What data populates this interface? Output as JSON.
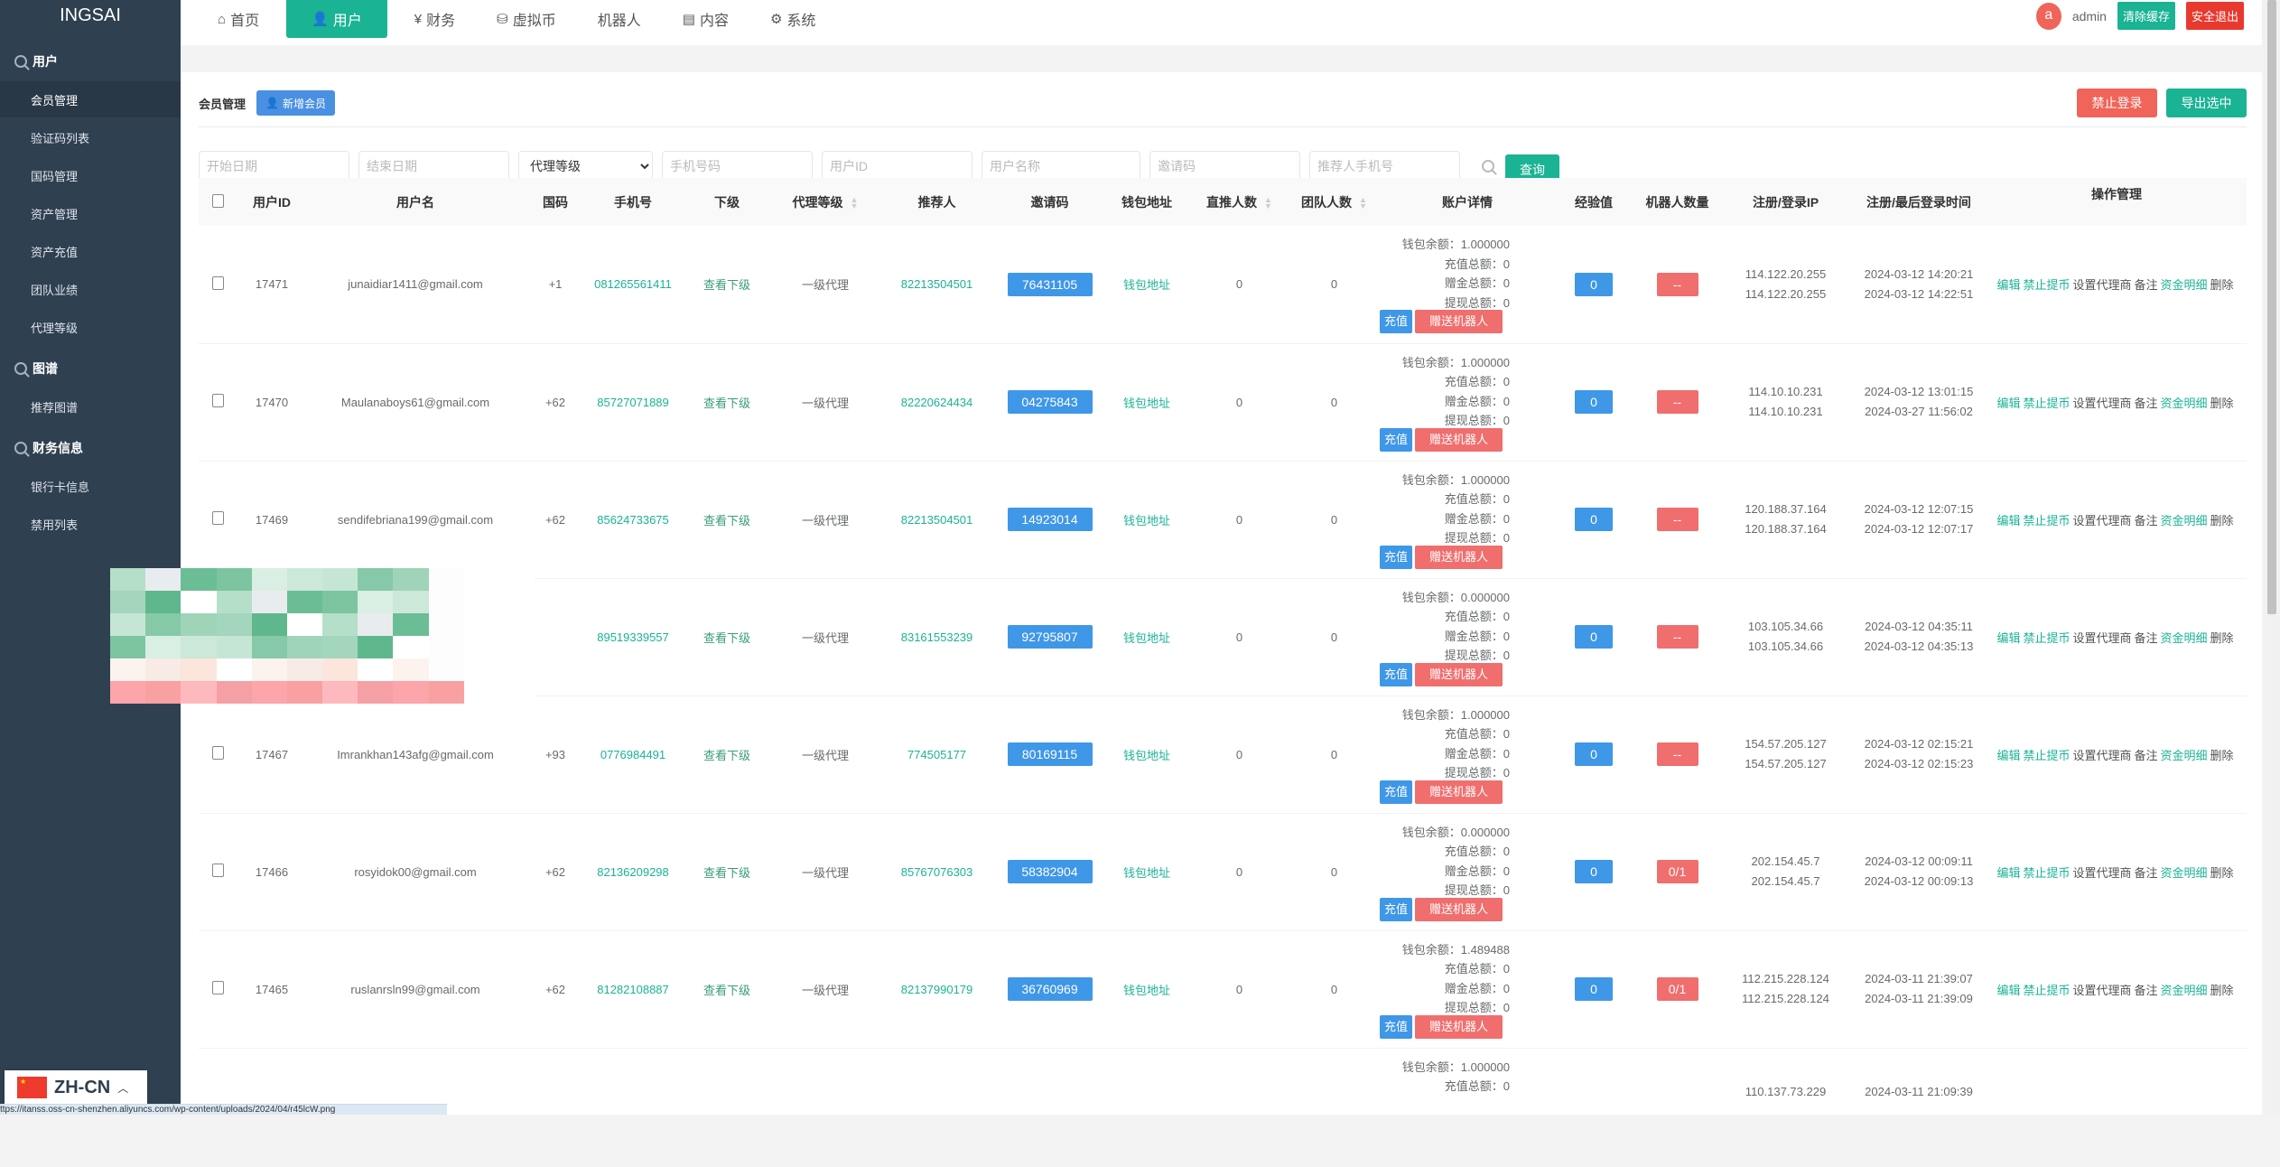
{
  "sidebar": {
    "logo": "INGSAI",
    "sections": [
      {
        "label": "用户",
        "items": [
          "会员管理",
          "验证码列表",
          "国码管理",
          "资产管理",
          "资产充值",
          "团队业绩",
          "代理等级"
        ]
      },
      {
        "label": "图谱",
        "items": [
          "推荐图谱"
        ]
      },
      {
        "label": "财务信息",
        "items": [
          "银行卡信息",
          "禁用列表"
        ]
      }
    ],
    "active_item": "会员管理"
  },
  "topnav": {
    "items": [
      {
        "label": "首页",
        "icon": "home-icon",
        "glyph": "⌂"
      },
      {
        "label": "用户",
        "icon": "user-icon",
        "glyph": "👤",
        "active": true
      },
      {
        "label": "财务",
        "icon": "finance-icon",
        "glyph": "¥"
      },
      {
        "label": "虚拟币",
        "icon": "database-icon",
        "glyph": "⛁"
      },
      {
        "label": "机器人",
        "icon": "",
        "glyph": ""
      },
      {
        "label": "内容",
        "icon": "document-icon",
        "glyph": "▤"
      },
      {
        "label": "系统",
        "icon": "gear-icon",
        "glyph": "⚙"
      }
    ],
    "avatar_letter": "a",
    "username": "admin",
    "clear_cache": "清除缓存",
    "logout": "安全退出"
  },
  "colors": {
    "sidebar": "#2f4050",
    "primary": "#1ab394",
    "blue": "#3f97e8",
    "red": "#f06e6e",
    "logout_red": "#e8392f"
  },
  "page": {
    "title": "会员管理",
    "add_member": "新增会员",
    "ban_login": "禁止登录",
    "export_selected": "导出选中"
  },
  "filters": {
    "start_date": "开始日期",
    "end_date": "结束日期",
    "agent_level": "代理等级",
    "phone": "手机号码",
    "user_id": "用户ID",
    "username": "用户名称",
    "invite_code": "邀请码",
    "referrer_phone": "推荐人手机号",
    "query": "查询"
  },
  "table": {
    "headers": [
      "用户ID",
      "用户名",
      "国码",
      "手机号",
      "下级",
      "代理等级",
      "推荐人",
      "邀请码",
      "钱包地址",
      "直推人数",
      "团队人数",
      "账户详情",
      "经验值",
      "机器人数量",
      "注册/登录IP",
      "注册/最后登录时间",
      "操作管理"
    ],
    "labels": {
      "view_sub": "查看下级",
      "wallet": "钱包地址",
      "balance": "钱包余额：",
      "recharge_total": "充值总额：",
      "bonus_total": "赠金总额：",
      "withdraw_total": "提现总额：",
      "recharge_btn": "充值",
      "gift_robot_btn": "赠送机器人",
      "ops": [
        "编辑",
        "禁止提币",
        "设置代理商",
        "备注",
        "资金明细",
        "删除"
      ]
    },
    "rows": [
      {
        "id": "17471",
        "name": "junaidiar1411@gmail.com",
        "cc": "+1",
        "phone": "081265561411",
        "level": "一级代理",
        "referrer": "82213504501",
        "invite": "76431105",
        "direct": "0",
        "team": "0",
        "balance": "1.000000",
        "recharge": "0",
        "bonus": "0",
        "withdraw": "0",
        "exp": "0",
        "robots": "--",
        "ip_reg": "114.122.20.255",
        "ip_login": "114.122.20.255",
        "t_reg": "2024-03-12 14:20:21",
        "t_login": "2024-03-12 14:22:51"
      },
      {
        "id": "17470",
        "name": "Maulanaboys61@gmail.com",
        "cc": "+62",
        "phone": "85727071889",
        "level": "一级代理",
        "referrer": "82220624434",
        "invite": "04275843",
        "direct": "0",
        "team": "0",
        "balance": "1.000000",
        "recharge": "0",
        "bonus": "0",
        "withdraw": "0",
        "exp": "0",
        "robots": "--",
        "ip_reg": "114.10.10.231",
        "ip_login": "114.10.10.231",
        "t_reg": "2024-03-12 13:01:15",
        "t_login": "2024-03-27 11:56:02"
      },
      {
        "id": "17469",
        "name": "sendifebriana199@gmail.com",
        "cc": "+62",
        "phone": "85624733675",
        "level": "一级代理",
        "referrer": "82213504501",
        "invite": "14923014",
        "direct": "0",
        "team": "0",
        "balance": "1.000000",
        "recharge": "0",
        "bonus": "0",
        "withdraw": "0",
        "exp": "0",
        "robots": "--",
        "ip_reg": "120.188.37.164",
        "ip_login": "120.188.37.164",
        "t_reg": "2024-03-12 12:07:15",
        "t_login": "2024-03-12 12:07:17"
      },
      {
        "obscured": true,
        "phone": "89519339557",
        "level": "一级代理",
        "referrer": "83161553239",
        "invite": "92795807",
        "direct": "0",
        "team": "0",
        "balance": "0.000000",
        "recharge": "0",
        "bonus": "0",
        "withdraw": "0",
        "exp": "0",
        "robots": "--",
        "ip_reg": "103.105.34.66",
        "ip_login": "103.105.34.66",
        "t_reg": "2024-03-12 04:35:11",
        "t_login": "2024-03-12 04:35:13"
      },
      {
        "id": "17467",
        "name": "Imrankhan143afg@gmail.com",
        "cc": "+93",
        "phone": "0776984491",
        "level": "一级代理",
        "referrer": "774505177",
        "invite": "80169115",
        "direct": "0",
        "team": "0",
        "balance": "1.000000",
        "recharge": "0",
        "bonus": "0",
        "withdraw": "0",
        "exp": "0",
        "robots": "--",
        "ip_reg": "154.57.205.127",
        "ip_login": "154.57.205.127",
        "t_reg": "2024-03-12 02:15:21",
        "t_login": "2024-03-12 02:15:23"
      },
      {
        "id": "17466",
        "name": "rosyidok00@gmail.com",
        "cc": "+62",
        "phone": "82136209298",
        "level": "一级代理",
        "referrer": "85767076303",
        "invite": "58382904",
        "direct": "0",
        "team": "0",
        "balance": "0.000000",
        "recharge": "0",
        "bonus": "0",
        "withdraw": "0",
        "exp": "0",
        "robots": "0/1",
        "ip_reg": "202.154.45.7",
        "ip_login": "202.154.45.7",
        "t_reg": "2024-03-12 00:09:11",
        "t_login": "2024-03-12 00:09:13"
      },
      {
        "id": "17465",
        "name": "ruslanrsln99@gmail.com",
        "cc": "+62",
        "phone": "81282108887",
        "level": "一级代理",
        "referrer": "82137990179",
        "invite": "36760969",
        "direct": "0",
        "team": "0",
        "balance": "1.489488",
        "recharge": "0",
        "bonus": "0",
        "withdraw": "0",
        "exp": "0",
        "robots": "0/1",
        "ip_reg": "112.215.228.124",
        "ip_login": "112.215.228.124",
        "t_reg": "2024-03-11 21:39:07",
        "t_login": "2024-03-11 21:39:09"
      },
      {
        "partial": true,
        "balance": "1.000000",
        "recharge": "0",
        "ip_reg": "110.137.73.229",
        "t_reg": "2024-03-11 21:09:39"
      }
    ]
  },
  "language": {
    "code": "ZH-CN"
  },
  "status_url": "ttps://itanss.oss-cn-shenzhen.aliyuncs.com/wp-content/uploads/2024/04/r45lcW.png"
}
